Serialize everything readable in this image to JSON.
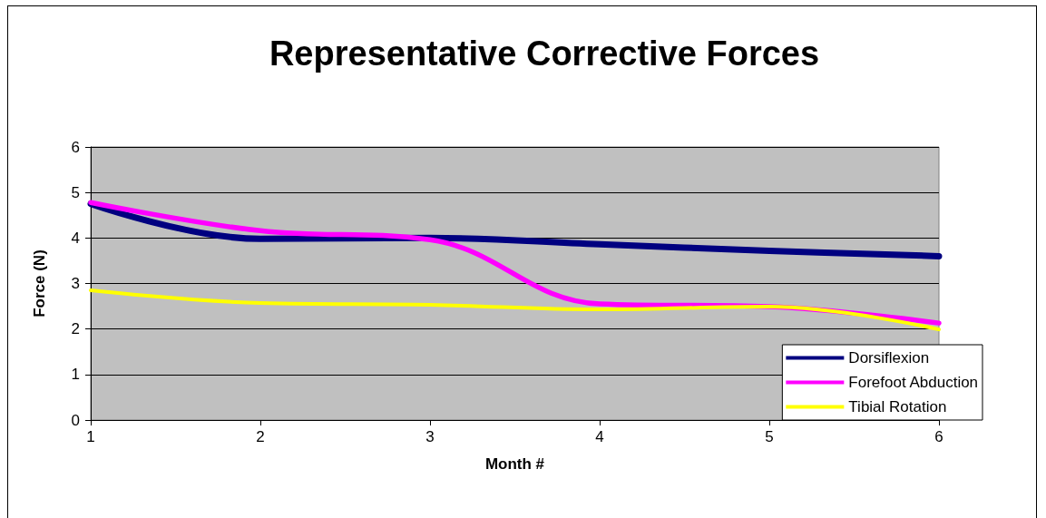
{
  "chart_data": {
    "type": "line",
    "title": "Representative Corrective Forces",
    "xlabel": "Month #",
    "ylabel": "Force (N)",
    "x": [
      1,
      2,
      3,
      4,
      5,
      6
    ],
    "series": [
      {
        "name": "Dorsiflexion",
        "color": "#000080",
        "values": [
          4.75,
          3.98,
          4.0,
          3.86,
          3.72,
          3.6
        ]
      },
      {
        "name": "Forefoot Abduction",
        "color": "#ff00ff",
        "values": [
          4.78,
          4.16,
          3.96,
          2.55,
          2.49,
          2.13
        ]
      },
      {
        "name": "Tibial Rotation",
        "color": "#ffff00",
        "values": [
          2.85,
          2.57,
          2.53,
          2.43,
          2.49,
          1.99
        ]
      }
    ],
    "xlim": [
      1,
      6
    ],
    "xticks": [
      1,
      2,
      3,
      4,
      5,
      6
    ],
    "ylim": [
      0,
      6
    ],
    "yticks": [
      0,
      1,
      2,
      3,
      4,
      5,
      6
    ],
    "grid": "y",
    "legend": "bottom right",
    "marker": "none",
    "line_style": "solid"
  }
}
